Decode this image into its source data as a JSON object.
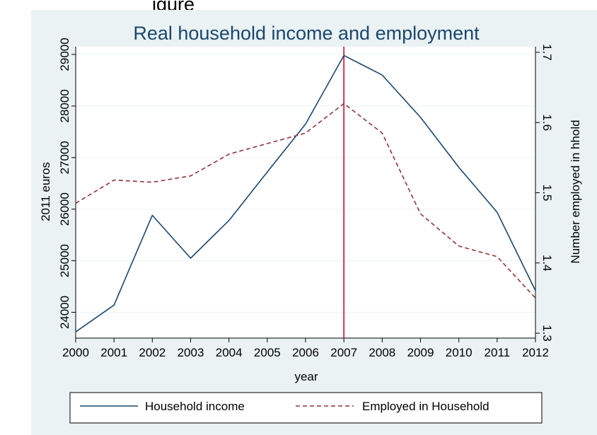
{
  "page_title_fragment": "igure",
  "chart_data": {
    "type": "line",
    "title": "Real household income and employment",
    "xlabel": "year",
    "ylabel_left": "2011 euros",
    "ylabel_right": "Number employed in hhold",
    "categories": [
      "2000",
      "2001",
      "2002",
      "2003",
      "2004",
      "2005",
      "2006",
      "2007",
      "2008",
      "2009",
      "2010",
      "2011",
      "2012"
    ],
    "x_range": [
      2000,
      2012
    ],
    "y_left_range": [
      23500,
      29150
    ],
    "y_left_ticks": [
      "24000",
      "25000",
      "26000",
      "27000",
      "28000",
      "29000"
    ],
    "y_right_range": [
      1.293,
      1.708
    ],
    "y_right_ticks": [
      "1.3",
      "1.4",
      "1.5",
      "1.6",
      "1.7"
    ],
    "grid": "horizontal",
    "vertical_marker": {
      "x": "2007",
      "color": "#c8102e"
    },
    "legend_position": "bottom",
    "series": [
      {
        "name": "Household income",
        "axis": "left",
        "style": "solid",
        "color": "#1a476f",
        "values": [
          23620,
          24140,
          25880,
          25050,
          25780,
          26720,
          27650,
          28980,
          28600,
          27780,
          26810,
          25940,
          24420
        ]
      },
      {
        "name": "Employed in Household",
        "axis": "right",
        "style": "dashed",
        "color": "#90353b",
        "values": [
          1.485,
          1.518,
          1.515,
          1.524,
          1.555,
          1.57,
          1.585,
          1.627,
          1.585,
          1.47,
          1.424,
          1.409,
          1.35
        ]
      }
    ]
  }
}
